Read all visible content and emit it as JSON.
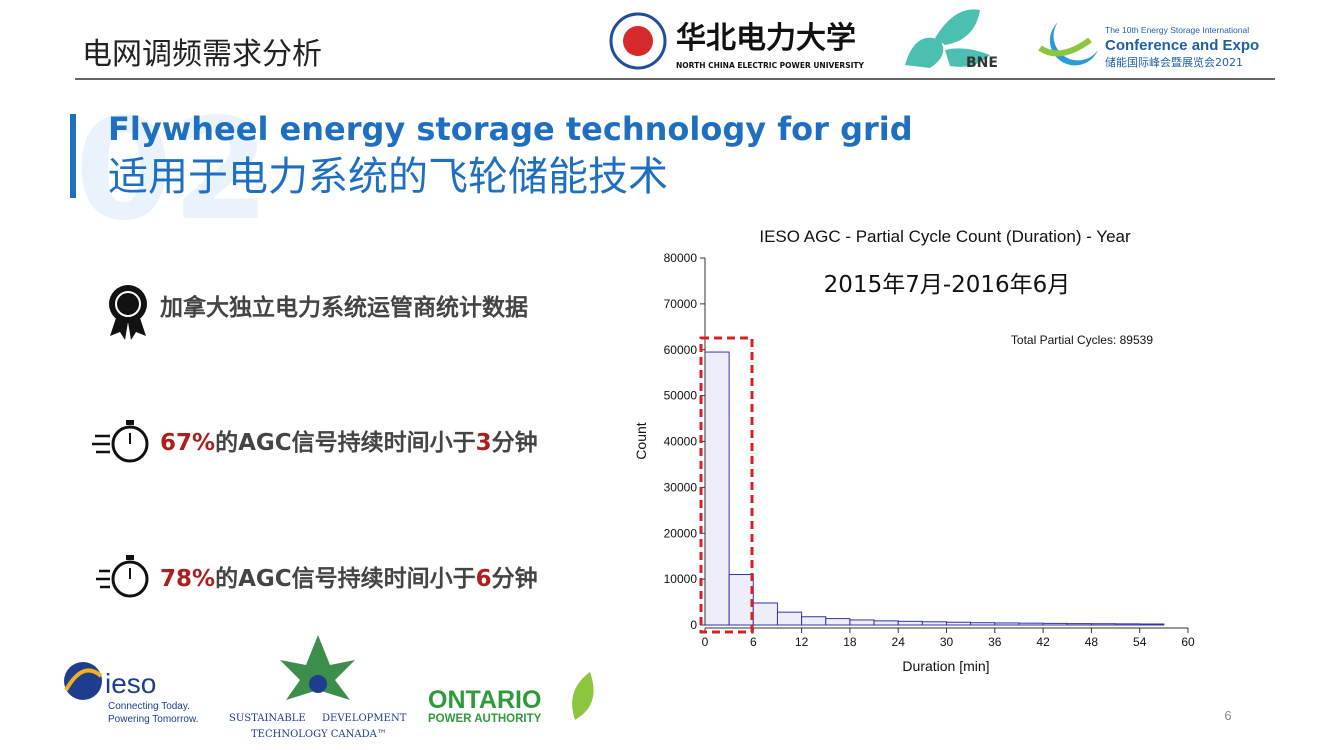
{
  "header": {
    "title": "电网调频需求分析",
    "university_cn": "华北电力大学",
    "university_en": "NORTH CHINA ELECTRIC POWER UNIVERSITY",
    "bne": "BNE",
    "expo_line1": "The 10th Energy Storage International",
    "expo_line2": "Conference and Expo",
    "expo_line3": "储能国际峰会暨展览会2021"
  },
  "section": {
    "number": "02",
    "title_en": "Flywheel energy storage technology for grid",
    "title_cn": "适用于电力系统的飞轮储能技术"
  },
  "bullets": [
    {
      "parts": [
        "加拿大独立电力系统运管商统计数据"
      ]
    },
    {
      "parts": [
        "67%",
        "的AGC信号持续时间小于",
        "3",
        "分钟"
      ]
    },
    {
      "parts": [
        "78%",
        "的AGC信号持续时间小于",
        "6",
        "分钟"
      ]
    }
  ],
  "chart_data": {
    "type": "histogram",
    "title": "IESO AGC - Partial Cycle Count (Duration) - Year",
    "subtitle": "2015年7月-2016年6月",
    "annotation": "Total Partial Cycles: 89539",
    "x_label": "Duration [min]",
    "y_label": "Count",
    "bins": [
      0,
      3,
      6,
      9,
      12,
      15,
      18,
      21,
      24,
      27,
      30,
      33,
      36,
      39,
      42,
      45,
      48,
      51,
      54,
      57
    ],
    "values": [
      59500,
      11000,
      4800,
      2800,
      1800,
      1400,
      1100,
      900,
      800,
      700,
      600,
      500,
      450,
      400,
      350,
      300,
      280,
      250,
      220
    ],
    "color": "#3333aa",
    "xlim": [
      0,
      60
    ],
    "xticks": [
      0,
      6,
      12,
      18,
      24,
      30,
      36,
      42,
      48,
      54,
      60
    ],
    "ylim": [
      0,
      80000
    ],
    "yticks": [
      0,
      10000,
      20000,
      30000,
      40000,
      50000,
      60000,
      70000,
      80000
    ]
  },
  "footer": {
    "ieso": "ieso",
    "ieso_line1": "Connecting Today.",
    "ieso_line2": "Powering Tomorrow.",
    "sdtc_left": "SUSTAINABLE",
    "sdtc_right": "DEVELOPMENT",
    "sdtc_line2": "TECHNOLOGY CANADA™",
    "opa_line1": "ONTARIO",
    "opa_line2": "POWER AUTHORITY",
    "page": "6"
  }
}
